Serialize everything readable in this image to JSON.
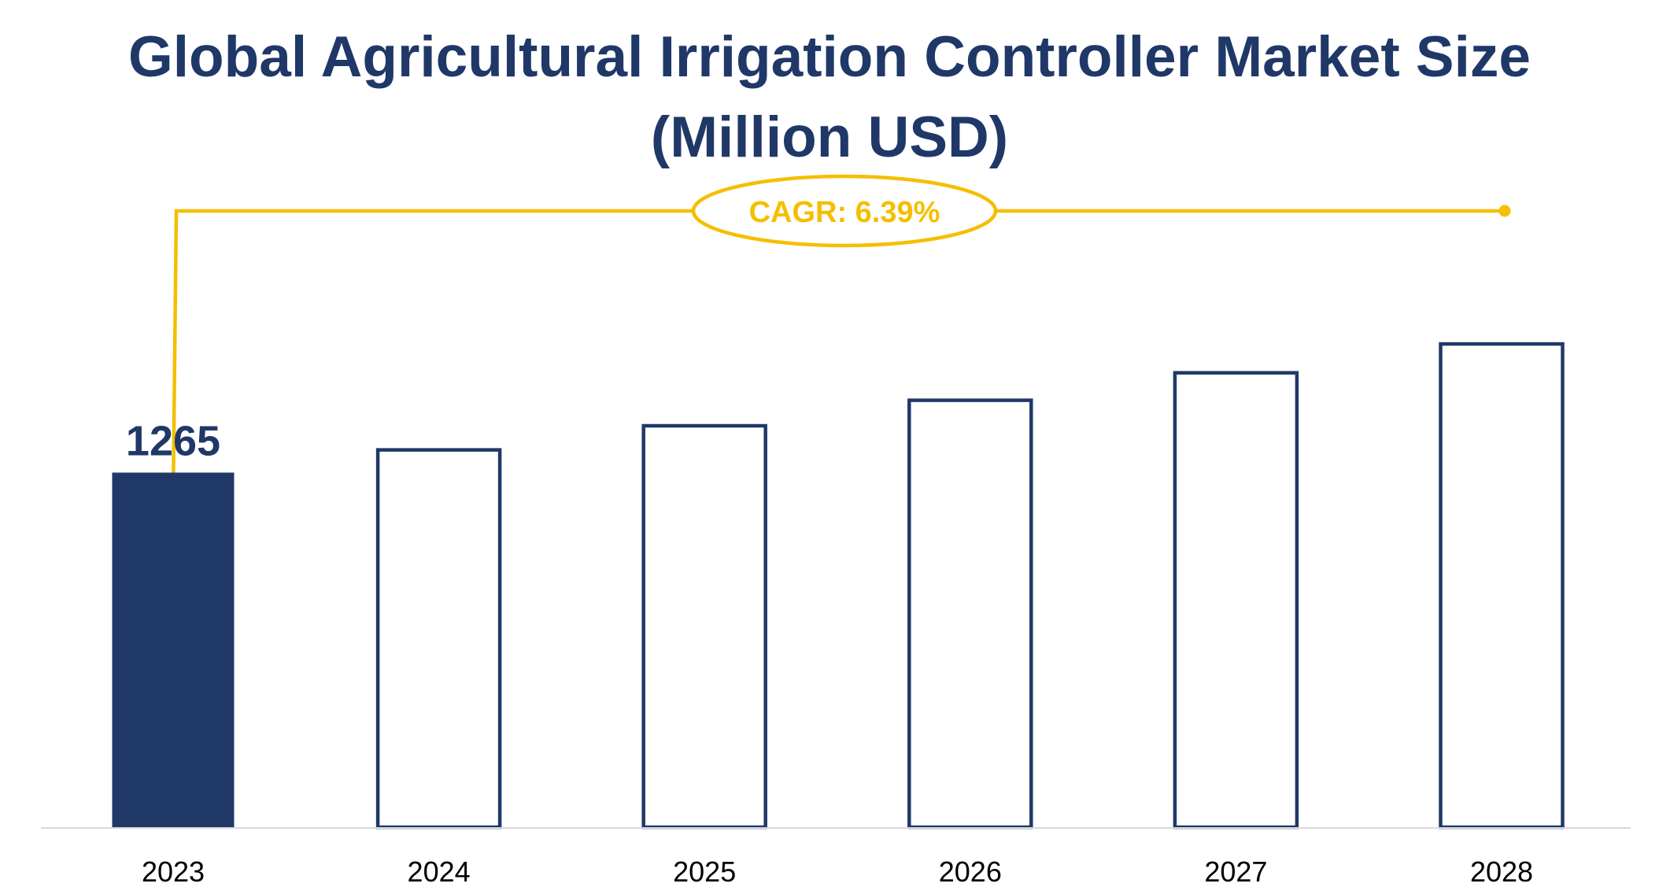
{
  "chart_data": {
    "type": "bar",
    "title_line1": "Global Agricultural Irrigation Controller Market Size",
    "title_line2": "(Million USD)",
    "categories": [
      "2023",
      "2024",
      "2025",
      "2026",
      "2027",
      "2028"
    ],
    "values": [
      1265,
      1346,
      1432,
      1523,
      1621,
      1724
    ],
    "data_labels": [
      "1265",
      "",
      "",
      "",
      "",
      ""
    ],
    "highlighted_index": 0,
    "cagr_label": "CAGR: 6.39%",
    "xlabel": "",
    "ylabel": "",
    "grid": false,
    "legend": "none"
  },
  "colors": {
    "title": "#1f3868",
    "bar_fill_highlight": "#1f3868",
    "bar_outline": "#1f3868",
    "bar_fill_other": "#ffffff",
    "cagr": "#f5be00",
    "baseline": "#d9d9d9",
    "tick_label": "#000000",
    "data_label": "#1f3868"
  }
}
